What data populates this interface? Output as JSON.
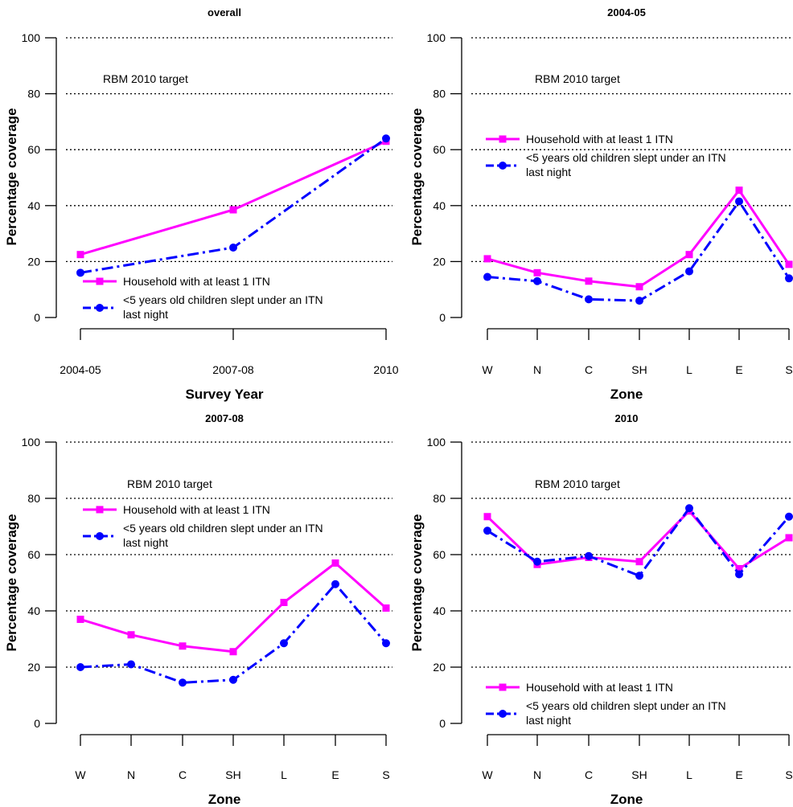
{
  "colors": {
    "household": "#ff00ff",
    "children": "#0000ff",
    "grid": "#000000"
  },
  "chart_data": [
    {
      "type": "line",
      "title": "overall",
      "xlabel": "Survey Year",
      "ylabel": "Percentage coverage",
      "categories": [
        "2004-05",
        "2007-08",
        "2010"
      ],
      "ylim": [
        0,
        100
      ],
      "yticks": [
        "0",
        "20",
        "40",
        "60",
        "80",
        "100"
      ],
      "grid": "dotted horizontal lines at 20, 40, 60, 80, 100",
      "target_label": "RBM 2010 target",
      "legend_position": "bottom-left",
      "series": [
        {
          "name": "Household with at least 1 ITN",
          "values": [
            22.5,
            38.5,
            63
          ]
        },
        {
          "name": "<5 years old children slept under an ITN last night",
          "values": [
            16,
            25,
            64
          ]
        }
      ]
    },
    {
      "type": "line",
      "title": "2004-05",
      "xlabel": "Zone",
      "ylabel": "Percentage coverage",
      "categories": [
        "W",
        "N",
        "C",
        "SH",
        "L",
        "E",
        "S"
      ],
      "ylim": [
        0,
        100
      ],
      "yticks": [
        "0",
        "20",
        "40",
        "60",
        "80",
        "100"
      ],
      "grid": "dotted horizontal lines at 20, 40, 60, 80, 100",
      "target_label": "RBM 2010 target",
      "legend_position": "upper-left",
      "series": [
        {
          "name": "Household with at least 1 ITN",
          "values": [
            21,
            16,
            13,
            11,
            22.5,
            45.5,
            19
          ]
        },
        {
          "name": "<5 years old children slept under an ITN last night",
          "values": [
            14.5,
            13,
            6.5,
            6,
            16.5,
            41.5,
            14
          ]
        }
      ]
    },
    {
      "type": "line",
      "title": "2007-08",
      "xlabel": "Zone",
      "ylabel": "Percentage coverage",
      "categories": [
        "W",
        "N",
        "C",
        "SH",
        "L",
        "E",
        "S"
      ],
      "ylim": [
        0,
        100
      ],
      "yticks": [
        "0",
        "20",
        "40",
        "60",
        "80",
        "100"
      ],
      "grid": "dotted horizontal lines at 20, 40, 60, 80, 100",
      "target_label": "RBM 2010 target",
      "legend_position": "upper-left",
      "series": [
        {
          "name": "Household with at least 1 ITN",
          "values": [
            37,
            31.5,
            27.5,
            25.5,
            43,
            57,
            41
          ]
        },
        {
          "name": "<5 years old children slept under an ITN last night",
          "values": [
            20,
            21,
            14.5,
            15.5,
            28.5,
            49.5,
            28.5
          ]
        }
      ]
    },
    {
      "type": "line",
      "title": "2010",
      "xlabel": "Zone",
      "ylabel": "Percentage coverage",
      "categories": [
        "W",
        "N",
        "C",
        "SH",
        "L",
        "E",
        "S"
      ],
      "ylim": [
        0,
        100
      ],
      "yticks": [
        "0",
        "20",
        "40",
        "60",
        "80",
        "100"
      ],
      "grid": "dotted horizontal lines at 20, 40, 60, 80, 100",
      "target_label": "RBM 2010 target",
      "legend_position": "bottom-left",
      "series": [
        {
          "name": "Household with at least 1 ITN",
          "values": [
            73.5,
            56.5,
            59,
            57.5,
            75.5,
            55,
            66
          ]
        },
        {
          "name": "<5 years old children slept under an ITN last night",
          "values": [
            68.5,
            57.5,
            59.5,
            52.5,
            76.5,
            53,
            73.5
          ]
        }
      ]
    }
  ]
}
